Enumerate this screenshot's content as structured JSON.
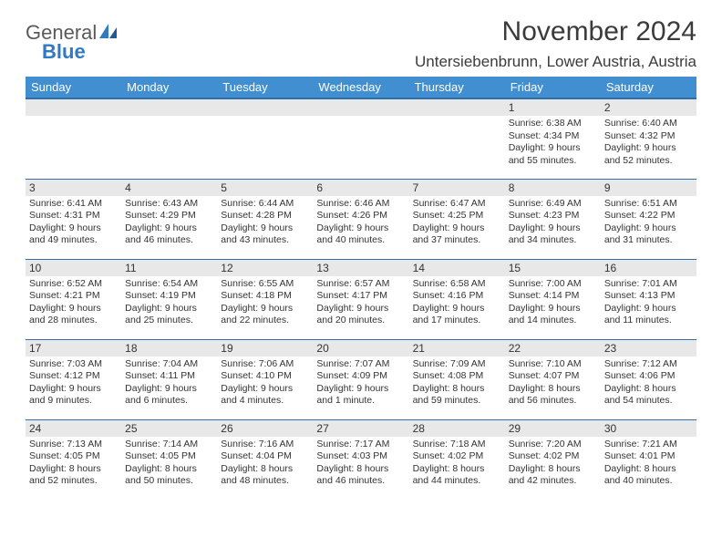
{
  "logo": {
    "text1": "General",
    "text2": "Blue",
    "color1": "#5a5a5a",
    "color2": "#2f7ac0"
  },
  "title": "November 2024",
  "location": "Untersiebenbrunn, Lower Austria, Austria",
  "header_bg": "#418fd0",
  "header_border": "#2e6fa8",
  "day_bg": "#e8e8e8",
  "days": [
    "Sunday",
    "Monday",
    "Tuesday",
    "Wednesday",
    "Thursday",
    "Friday",
    "Saturday"
  ],
  "weeks": [
    [
      null,
      null,
      null,
      null,
      null,
      {
        "n": "1",
        "sr": "6:38 AM",
        "ss": "4:34 PM",
        "dl": "9 hours and 55 minutes."
      },
      {
        "n": "2",
        "sr": "6:40 AM",
        "ss": "4:32 PM",
        "dl": "9 hours and 52 minutes."
      }
    ],
    [
      {
        "n": "3",
        "sr": "6:41 AM",
        "ss": "4:31 PM",
        "dl": "9 hours and 49 minutes."
      },
      {
        "n": "4",
        "sr": "6:43 AM",
        "ss": "4:29 PM",
        "dl": "9 hours and 46 minutes."
      },
      {
        "n": "5",
        "sr": "6:44 AM",
        "ss": "4:28 PM",
        "dl": "9 hours and 43 minutes."
      },
      {
        "n": "6",
        "sr": "6:46 AM",
        "ss": "4:26 PM",
        "dl": "9 hours and 40 minutes."
      },
      {
        "n": "7",
        "sr": "6:47 AM",
        "ss": "4:25 PM",
        "dl": "9 hours and 37 minutes."
      },
      {
        "n": "8",
        "sr": "6:49 AM",
        "ss": "4:23 PM",
        "dl": "9 hours and 34 minutes."
      },
      {
        "n": "9",
        "sr": "6:51 AM",
        "ss": "4:22 PM",
        "dl": "9 hours and 31 minutes."
      }
    ],
    [
      {
        "n": "10",
        "sr": "6:52 AM",
        "ss": "4:21 PM",
        "dl": "9 hours and 28 minutes."
      },
      {
        "n": "11",
        "sr": "6:54 AM",
        "ss": "4:19 PM",
        "dl": "9 hours and 25 minutes."
      },
      {
        "n": "12",
        "sr": "6:55 AM",
        "ss": "4:18 PM",
        "dl": "9 hours and 22 minutes."
      },
      {
        "n": "13",
        "sr": "6:57 AM",
        "ss": "4:17 PM",
        "dl": "9 hours and 20 minutes."
      },
      {
        "n": "14",
        "sr": "6:58 AM",
        "ss": "4:16 PM",
        "dl": "9 hours and 17 minutes."
      },
      {
        "n": "15",
        "sr": "7:00 AM",
        "ss": "4:14 PM",
        "dl": "9 hours and 14 minutes."
      },
      {
        "n": "16",
        "sr": "7:01 AM",
        "ss": "4:13 PM",
        "dl": "9 hours and 11 minutes."
      }
    ],
    [
      {
        "n": "17",
        "sr": "7:03 AM",
        "ss": "4:12 PM",
        "dl": "9 hours and 9 minutes."
      },
      {
        "n": "18",
        "sr": "7:04 AM",
        "ss": "4:11 PM",
        "dl": "9 hours and 6 minutes."
      },
      {
        "n": "19",
        "sr": "7:06 AM",
        "ss": "4:10 PM",
        "dl": "9 hours and 4 minutes."
      },
      {
        "n": "20",
        "sr": "7:07 AM",
        "ss": "4:09 PM",
        "dl": "9 hours and 1 minute."
      },
      {
        "n": "21",
        "sr": "7:09 AM",
        "ss": "4:08 PM",
        "dl": "8 hours and 59 minutes."
      },
      {
        "n": "22",
        "sr": "7:10 AM",
        "ss": "4:07 PM",
        "dl": "8 hours and 56 minutes."
      },
      {
        "n": "23",
        "sr": "7:12 AM",
        "ss": "4:06 PM",
        "dl": "8 hours and 54 minutes."
      }
    ],
    [
      {
        "n": "24",
        "sr": "7:13 AM",
        "ss": "4:05 PM",
        "dl": "8 hours and 52 minutes."
      },
      {
        "n": "25",
        "sr": "7:14 AM",
        "ss": "4:05 PM",
        "dl": "8 hours and 50 minutes."
      },
      {
        "n": "26",
        "sr": "7:16 AM",
        "ss": "4:04 PM",
        "dl": "8 hours and 48 minutes."
      },
      {
        "n": "27",
        "sr": "7:17 AM",
        "ss": "4:03 PM",
        "dl": "8 hours and 46 minutes."
      },
      {
        "n": "28",
        "sr": "7:18 AM",
        "ss": "4:02 PM",
        "dl": "8 hours and 44 minutes."
      },
      {
        "n": "29",
        "sr": "7:20 AM",
        "ss": "4:02 PM",
        "dl": "8 hours and 42 minutes."
      },
      {
        "n": "30",
        "sr": "7:21 AM",
        "ss": "4:01 PM",
        "dl": "8 hours and 40 minutes."
      }
    ]
  ],
  "labels": {
    "sunrise": "Sunrise: ",
    "sunset": "Sunset: ",
    "daylight": "Daylight: "
  }
}
